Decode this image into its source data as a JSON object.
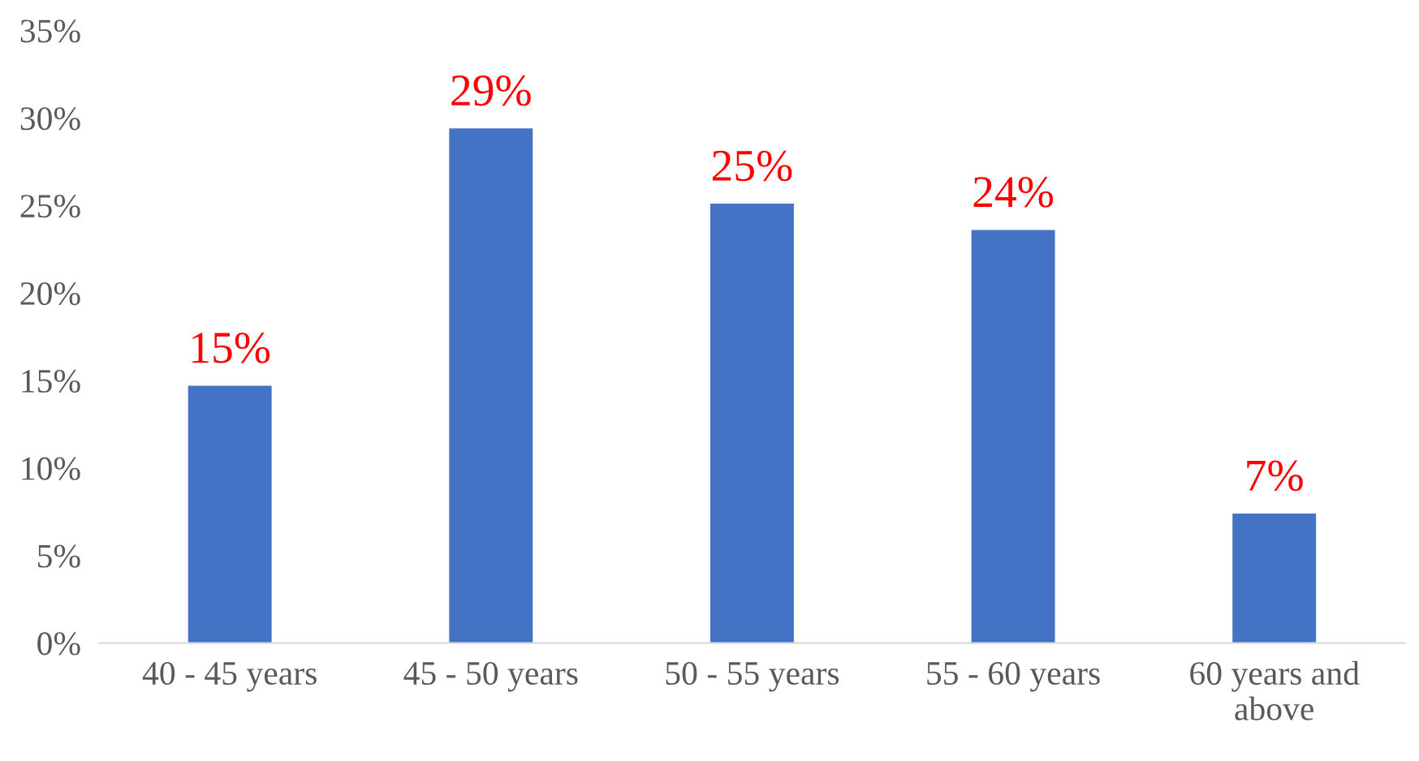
{
  "chart_data": {
    "type": "bar",
    "categories": [
      "40 - 45 years",
      "45 - 50 years",
      "50 - 55 years",
      "55 - 60 years",
      "60 years and\nabove"
    ],
    "values": [
      14.7,
      29.4,
      25.1,
      23.6,
      7.4
    ],
    "color": "#4472c4",
    "value_labels": [
      "15%",
      "29%",
      "25%",
      "24%",
      "7%"
    ],
    "ylim": [
      0,
      35
    ],
    "yticks": [
      {
        "value": 0,
        "label": "0%"
      },
      {
        "value": 5,
        "label": "5%"
      },
      {
        "value": 10,
        "label": "10%"
      },
      {
        "value": 15,
        "label": "15%"
      },
      {
        "value": 20,
        "label": "20%"
      },
      {
        "value": 25,
        "label": "25%"
      },
      {
        "value": 30,
        "label": "30%"
      },
      {
        "value": 35,
        "label": "35%"
      }
    ],
    "grid": false
  }
}
